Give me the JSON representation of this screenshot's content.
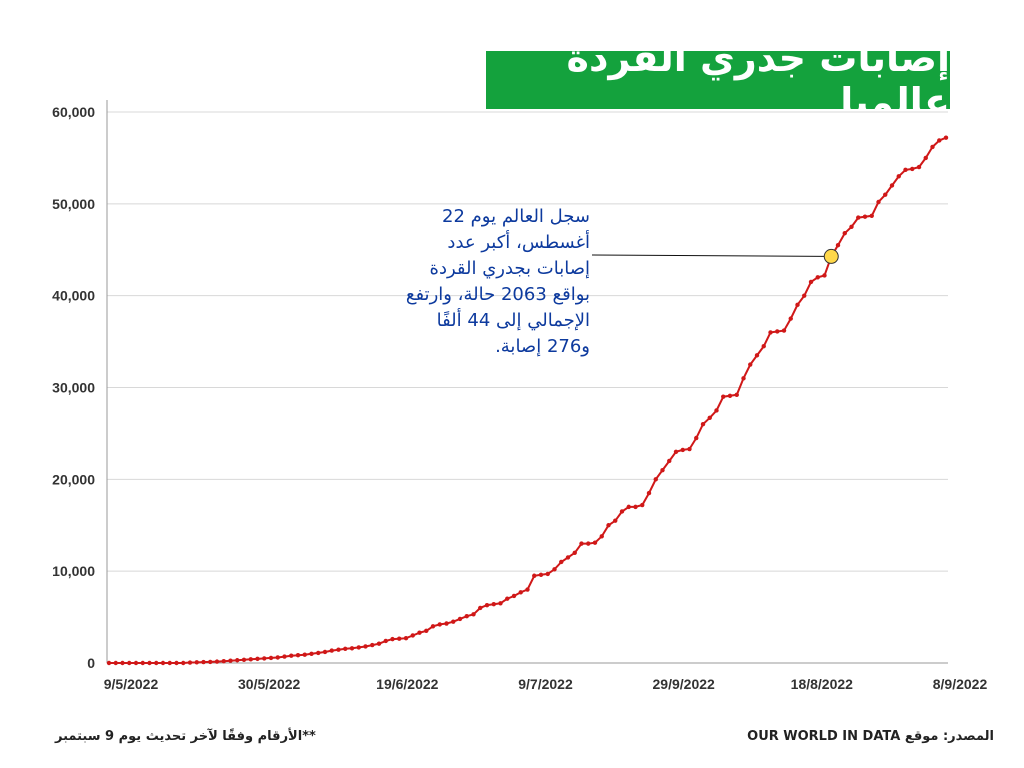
{
  "title": "إصابات جدري القردة عالميا",
  "annotation": "سجل العالم يوم 22 أغسطس، أكبر عدد إصابات بجدري القردة بواقع 2063 حالة، وارتفع الإجمالي إلى 44 ألفًا و276 إصابة.",
  "footer": {
    "source": "المصدر: موقع OUR WORLD IN DATA",
    "note": "**الأرقام وفقًا لآخر تحديث يوم 9 سبتمبر"
  },
  "colors": {
    "line": "#d01818",
    "title_bg": "#14a23d",
    "highlight": "#ffd84a",
    "annotation": "#0d3a9e"
  },
  "chart_data": {
    "type": "line",
    "y_ticks": [
      0,
      10000,
      20000,
      30000,
      40000,
      50000,
      60000
    ],
    "y_tick_labels": [
      "0",
      "10,000",
      "20,000",
      "30,000",
      "40,000",
      "50,000",
      "60,000"
    ],
    "x_tick_labels": [
      "9/5/2022",
      "30/5/2022",
      "19/6/2022",
      "9/7/2022",
      "29/9/2022",
      "18/8/2022",
      "8/9/2022"
    ],
    "ylim": [
      0,
      60000
    ],
    "grid": true,
    "highlight_point": {
      "label": "22/8/2022",
      "y": 44276
    },
    "series": [
      {
        "values": [
          0,
          0,
          0,
          0,
          0,
          0,
          0,
          0,
          0,
          0,
          0,
          0,
          50,
          70,
          100,
          120,
          150,
          200,
          250,
          300,
          350,
          400,
          450,
          500,
          550,
          600,
          700,
          800,
          850,
          900,
          1000,
          1100,
          1200,
          1350,
          1450,
          1550,
          1600,
          1700,
          1800,
          1950,
          2100,
          2400,
          2600,
          2650,
          2700,
          3000,
          3300,
          3500,
          4000,
          4200,
          4300,
          4500,
          4800,
          5100,
          5300,
          6000,
          6300,
          6400,
          6500,
          7000,
          7300,
          7700,
          8000,
          9500,
          9600,
          9700,
          10200,
          11000,
          11500,
          12000,
          13000,
          13000,
          13100,
          13800,
          15000,
          15500,
          16500,
          17000,
          17000,
          17200,
          18500,
          20000,
          21000,
          22000,
          23000,
          23200,
          23300,
          24500,
          26000,
          26700,
          27500,
          29000,
          29100,
          29200,
          31000,
          32500,
          33500,
          34500,
          36000,
          36100,
          36200,
          37500,
          39000,
          40000,
          41500,
          42000,
          42200,
          44276,
          45500,
          46800,
          47500,
          48500,
          48600,
          48700,
          50200,
          51000,
          52000,
          53000,
          53700,
          53800,
          54000,
          55000,
          56200,
          56900,
          57200
        ]
      }
    ]
  }
}
